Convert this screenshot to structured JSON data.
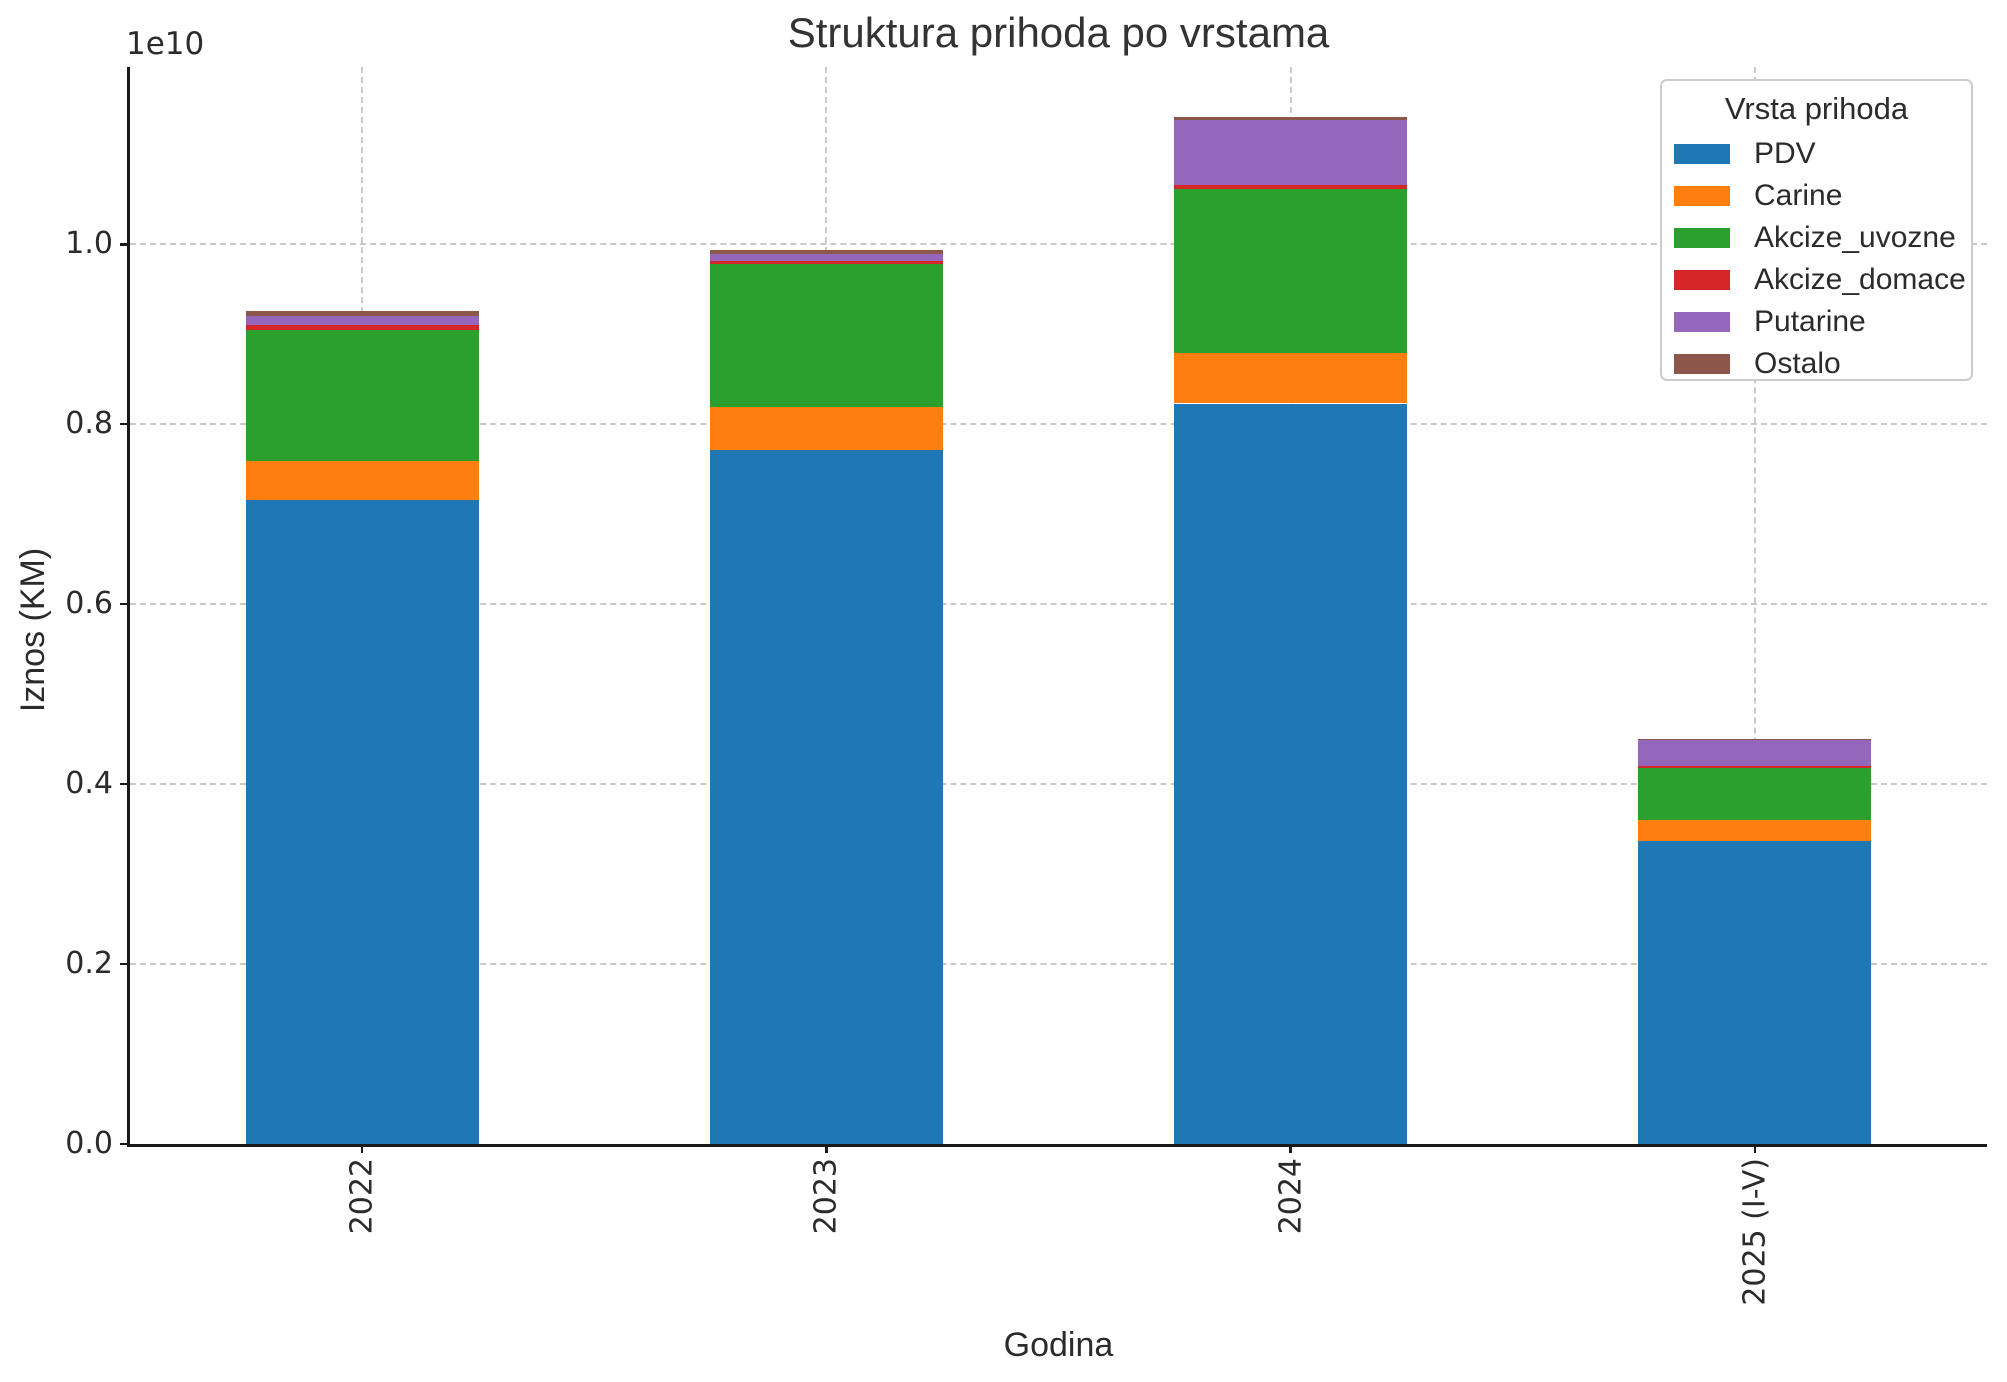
{
  "title": "Struktura prihoda po vrstama",
  "axes": {
    "xlabel": "Godina",
    "ylabel": "Iznos (KM)",
    "offset_text": "1e10",
    "ytick_labels": [
      "0.0",
      "0.2",
      "0.4",
      "0.6",
      "0.8",
      "1.0"
    ]
  },
  "legend": {
    "title": "Vrsta prihoda"
  },
  "chart_data": {
    "type": "bar",
    "stacked": true,
    "title": "Struktura prihoda po vrstama",
    "xlabel": "Godina",
    "ylabel": "Iznos (KM)",
    "unit": "KM",
    "scale_note": "y axis in units of 1e10 KM",
    "categories": [
      "2022",
      "2023",
      "2024",
      "2025 (I-V)"
    ],
    "series": [
      {
        "name": "PDV",
        "color": "#1f77b4",
        "values": [
          7160000000,
          7710000000,
          8230000000,
          3370000000
        ]
      },
      {
        "name": "Carine",
        "color": "#ff7f0e",
        "values": [
          435000000,
          480000000,
          560000000,
          235000000
        ]
      },
      {
        "name": "Akcize_uvozne",
        "color": "#2ca02c",
        "values": [
          1450000000,
          1585000000,
          1820000000,
          575000000
        ]
      },
      {
        "name": "Akcize_domace",
        "color": "#d62728",
        "values": [
          55000000,
          40000000,
          45000000,
          25000000
        ]
      },
      {
        "name": "Putarine",
        "color": "#9467bd",
        "values": [
          100000000,
          75000000,
          725000000,
          285000000
        ]
      },
      {
        "name": "Ostalo",
        "color": "#8c564b",
        "values": [
          55000000,
          45000000,
          35000000,
          15000000
        ]
      }
    ],
    "totals": [
      9255000000,
      9935000000,
      11415000000,
      4505000000
    ],
    "ylim": [
      0,
      11970000000
    ],
    "yticks": [
      0,
      2000000000,
      4000000000,
      6000000000,
      8000000000,
      10000000000
    ],
    "grid": true,
    "grid_style": "dashed",
    "legend_title": "Vrsta prihoda",
    "legend_position": "upper right",
    "xtick_rotation": 90
  }
}
